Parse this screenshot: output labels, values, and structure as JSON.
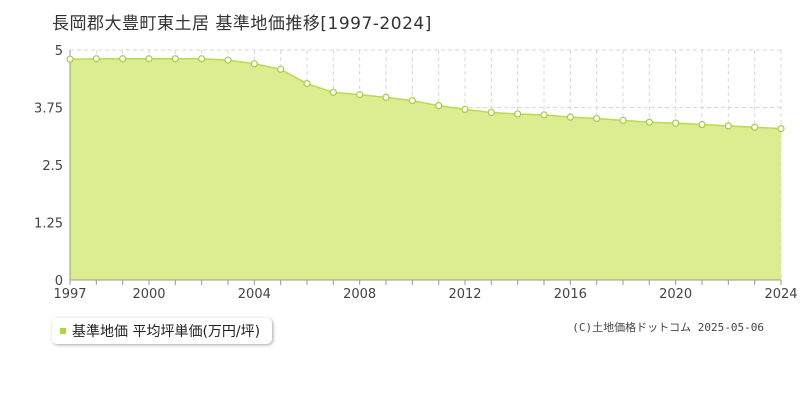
{
  "title": "長岡郡大豊町東土居 基準地価推移[1997-2024]",
  "legend": {
    "label": "基準地価 平均坪単価(万円/坪)"
  },
  "copyright": "(C)土地価格ドットコム 2025-05-06",
  "colors": {
    "fill": "#dcec90",
    "line": "#b8dc50",
    "point_stroke": "#a8cc40",
    "point_fill": "#ffffff",
    "grid": "#d8d8d8",
    "axis": "#999999",
    "legend_swatch": "#a8d840"
  },
  "chart_data": {
    "type": "area",
    "title": "長岡郡大豊町東土居 基準地価推移[1997-2024]",
    "xlabel": "",
    "ylabel": "",
    "x": [
      1997,
      1998,
      1999,
      2000,
      2001,
      2002,
      2003,
      2004,
      2005,
      2006,
      2007,
      2008,
      2009,
      2010,
      2011,
      2012,
      2013,
      2014,
      2015,
      2016,
      2017,
      2018,
      2019,
      2020,
      2021,
      2022,
      2023,
      2024
    ],
    "series": [
      {
        "name": "基準地価 平均坪単価(万円/坪)",
        "values": [
          4.8,
          4.81,
          4.81,
          4.81,
          4.81,
          4.81,
          4.78,
          4.7,
          4.58,
          4.27,
          4.08,
          4.03,
          3.97,
          3.9,
          3.79,
          3.71,
          3.64,
          3.61,
          3.59,
          3.54,
          3.51,
          3.47,
          3.43,
          3.41,
          3.38,
          3.35,
          3.32,
          3.29
        ]
      }
    ],
    "xlim": [
      1997,
      2024
    ],
    "ylim": [
      0,
      5
    ],
    "yticks": [
      "0",
      "1.25",
      "2.5",
      "3.75",
      "5"
    ],
    "xticks": [
      "1997",
      "2000",
      "2004",
      "2008",
      "2012",
      "2016",
      "2020",
      "2024"
    ],
    "grid": true
  }
}
